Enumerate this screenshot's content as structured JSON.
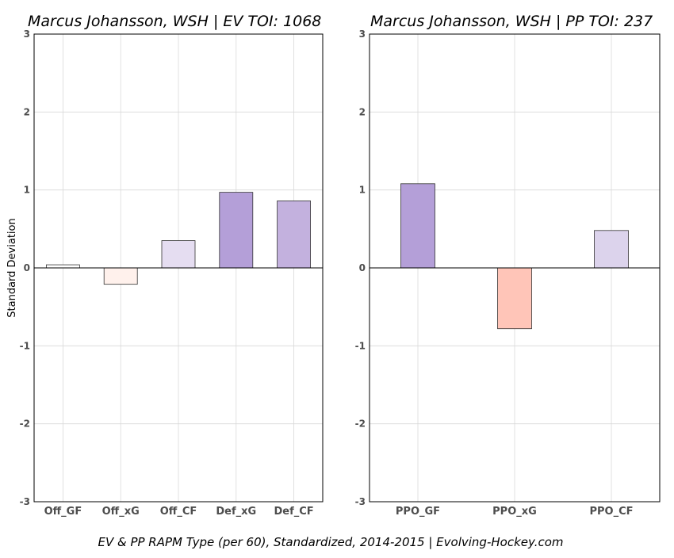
{
  "chart_data": [
    {
      "type": "bar",
      "title": "Marcus Johansson, WSH  |  EV TOI: 1068",
      "ylabel": "Standard Deviation",
      "xlabel": "",
      "ylim": [
        -3,
        3
      ],
      "yticks": [
        -3,
        -2,
        -1,
        0,
        1,
        2,
        3
      ],
      "grid": true,
      "categories": [
        "Off_GF",
        "Off_xG",
        "Off_CF",
        "Def_xG",
        "Def_CF"
      ],
      "values": [
        0.04,
        -0.21,
        0.35,
        0.97,
        0.86
      ],
      "colors": [
        "#ffffff",
        "#fff1ec",
        "#e5ddf1",
        "#b49fd8",
        "#c3b1de"
      ]
    },
    {
      "type": "bar",
      "title": "Marcus Johansson, WSH  |  PP TOI: 237",
      "ylabel": "",
      "xlabel": "",
      "ylim": [
        -3,
        3
      ],
      "yticks": [
        -3,
        -2,
        -1,
        0,
        1,
        2,
        3
      ],
      "grid": true,
      "categories": [
        "PPO_GF",
        "PPO_xG",
        "PPO_CF"
      ],
      "values": [
        1.08,
        -0.78,
        0.48
      ],
      "colors": [
        "#b49fd8",
        "#ffc5b8",
        "#dcd3ec"
      ]
    }
  ],
  "caption": "EV & PP RAPM Type (per 60), Standardized, 2014-2015    |    Evolving-Hockey.com"
}
